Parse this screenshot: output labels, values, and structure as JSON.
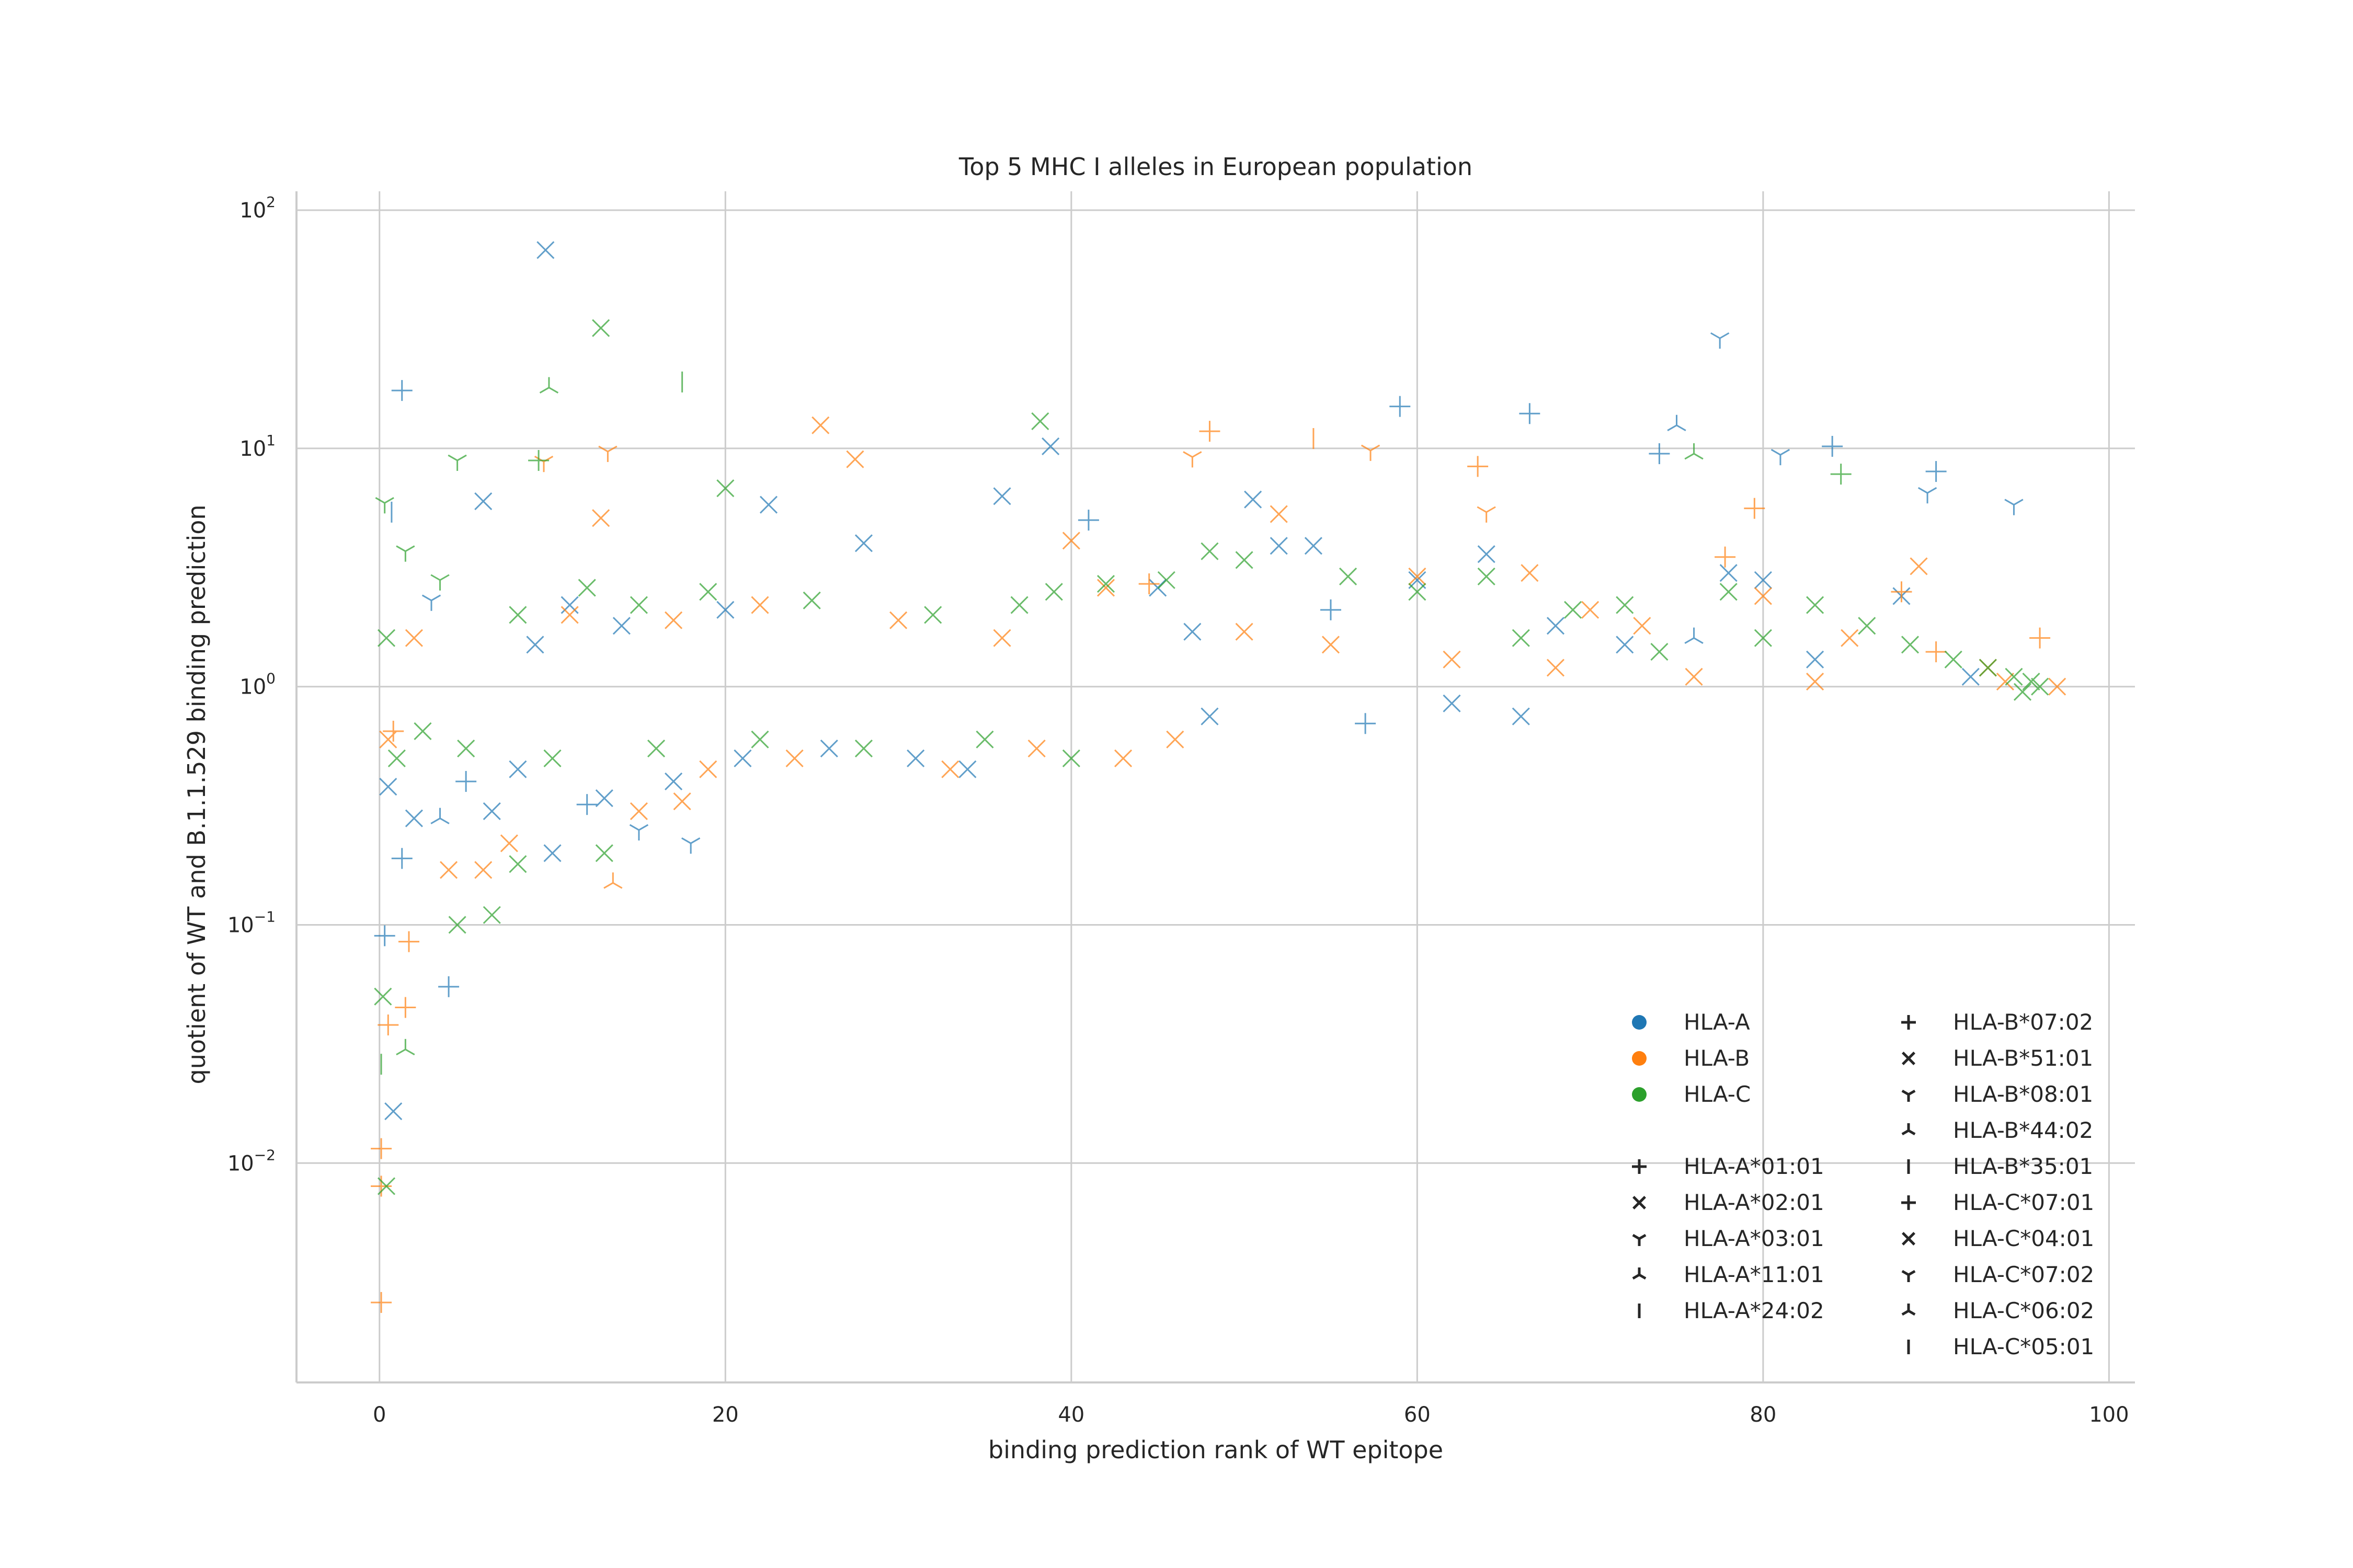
{
  "chart_data": {
    "type": "scatter",
    "title": "Top 5 MHC I alleles in European population",
    "xlabel": "binding prediction rank of WT epitope",
    "ylabel": "quotient of WT and B.1.1.529 binding prediction",
    "xlim": [
      -4.8,
      101.5
    ],
    "ylim": [
      0.0012,
      120
    ],
    "yscale": "log",
    "grid": true,
    "x_ticks": [
      "0",
      "20",
      "40",
      "60",
      "80",
      "100"
    ],
    "x_tick_values": [
      0,
      20,
      40,
      60,
      80,
      100
    ],
    "y_ticks": [
      {
        "base": "10",
        "exp": "−2",
        "value": 0.01
      },
      {
        "base": "10",
        "exp": "−1",
        "value": 0.1
      },
      {
        "base": "10",
        "exp": "0",
        "value": 1
      },
      {
        "base": "10",
        "exp": "1",
        "value": 10
      },
      {
        "base": "10",
        "exp": "2",
        "value": 100
      }
    ],
    "hue_legend": [
      {
        "label": "HLA-A",
        "color": "#1f77b4"
      },
      {
        "label": "HLA-B",
        "color": "#ff7f0e"
      },
      {
        "label": "HLA-C",
        "color": "#2ca02c"
      }
    ],
    "style_legend": [
      {
        "label": "HLA-A*01:01",
        "marker": "plus"
      },
      {
        "label": "HLA-A*02:01",
        "marker": "x"
      },
      {
        "label": "HLA-A*03:01",
        "marker": "tri_down"
      },
      {
        "label": "HLA-A*11:01",
        "marker": "tri_up"
      },
      {
        "label": "HLA-A*24:02",
        "marker": "vline"
      },
      {
        "label": "HLA-B*07:02",
        "marker": "plus"
      },
      {
        "label": "HLA-B*51:01",
        "marker": "x"
      },
      {
        "label": "HLA-B*08:01",
        "marker": "tri_down"
      },
      {
        "label": "HLA-B*44:02",
        "marker": "tri_up"
      },
      {
        "label": "HLA-B*35:01",
        "marker": "vline"
      },
      {
        "label": "HLA-C*07:01",
        "marker": "plus"
      },
      {
        "label": "HLA-C*04:01",
        "marker": "x"
      },
      {
        "label": "HLA-C*07:02",
        "marker": "tri_down"
      },
      {
        "label": "HLA-C*06:02",
        "marker": "tri_up"
      },
      {
        "label": "HLA-C*05:01",
        "marker": "vline"
      }
    ],
    "legend_position": "lower right",
    "series": [
      {
        "group": "HLA-A",
        "color": "#1f77b4",
        "points": [
          [
            9.6,
            68,
            "x"
          ],
          [
            1.3,
            17.5,
            "plus"
          ],
          [
            77.5,
            29,
            "tri_down"
          ],
          [
            75,
            12.5,
            "tri_up"
          ],
          [
            59,
            15,
            "plus"
          ],
          [
            66.5,
            14,
            "plus"
          ],
          [
            38.8,
            10.2,
            "x"
          ],
          [
            84,
            10.2,
            "plus"
          ],
          [
            74,
            9.5,
            "plus"
          ],
          [
            81,
            9.4,
            "tri_down"
          ],
          [
            90,
            8,
            "plus"
          ],
          [
            89.5,
            6.5,
            "tri_down"
          ],
          [
            94.5,
            5.8,
            "tri_down"
          ],
          [
            6,
            6,
            "x"
          ],
          [
            22.5,
            5.8,
            "x"
          ],
          [
            36,
            6.3,
            "x"
          ],
          [
            50.5,
            6.1,
            "x"
          ],
          [
            54,
            3.9,
            "x"
          ],
          [
            52,
            3.9,
            "x"
          ],
          [
            41,
            5,
            "plus"
          ],
          [
            28,
            4,
            "x"
          ],
          [
            11,
            2.2,
            "x"
          ],
          [
            3,
            2.3,
            "tri_down"
          ],
          [
            0.7,
            5.4,
            "vline"
          ],
          [
            0.3,
            0.09,
            "plus"
          ],
          [
            0.8,
            0.0165,
            "x"
          ],
          [
            4,
            0.055,
            "plus"
          ],
          [
            1.3,
            0.19,
            "plus"
          ],
          [
            0.5,
            0.38,
            "x"
          ],
          [
            3.5,
            0.28,
            "tri_up"
          ],
          [
            2,
            0.28,
            "x"
          ],
          [
            10,
            0.2,
            "x"
          ],
          [
            12,
            0.32,
            "plus"
          ],
          [
            13,
            0.34,
            "x"
          ],
          [
            15,
            0.25,
            "tri_down"
          ],
          [
            17,
            0.4,
            "x"
          ],
          [
            18,
            0.22,
            "tri_down"
          ],
          [
            8,
            0.45,
            "x"
          ],
          [
            6.5,
            0.3,
            "x"
          ],
          [
            21,
            0.5,
            "x"
          ],
          [
            26,
            0.55,
            "x"
          ],
          [
            31,
            0.5,
            "x"
          ],
          [
            34,
            0.45,
            "x"
          ],
          [
            5,
            0.4,
            "plus"
          ],
          [
            64,
            3.6,
            "x"
          ],
          [
            68,
            1.8,
            "x"
          ],
          [
            72,
            1.5,
            "x"
          ],
          [
            47,
            1.7,
            "x"
          ],
          [
            55,
            2.1,
            "plus"
          ],
          [
            60,
            2.8,
            "x"
          ],
          [
            45,
            2.6,
            "x"
          ],
          [
            20,
            2.1,
            "x"
          ],
          [
            14,
            1.8,
            "x"
          ],
          [
            9,
            1.5,
            "x"
          ],
          [
            76,
            1.6,
            "tri_up"
          ],
          [
            83,
            1.3,
            "x"
          ],
          [
            92,
            1.1,
            "x"
          ],
          [
            78,
            3,
            "x"
          ],
          [
            80,
            2.8,
            "x"
          ],
          [
            88,
            2.4,
            "x"
          ],
          [
            66,
            0.75,
            "x"
          ],
          [
            57,
            0.7,
            "plus"
          ],
          [
            62,
            0.85,
            "x"
          ],
          [
            48,
            0.75,
            "x"
          ]
        ]
      },
      {
        "group": "HLA-B",
        "color": "#ff7f0e",
        "points": [
          [
            0.1,
            0.0026,
            "plus"
          ],
          [
            0.1,
            0.0115,
            "plus"
          ],
          [
            0.1,
            0.008,
            "plus"
          ],
          [
            0.5,
            0.038,
            "plus"
          ],
          [
            1.5,
            0.045,
            "plus"
          ],
          [
            1.7,
            0.085,
            "plus"
          ],
          [
            25.5,
            12.5,
            "x"
          ],
          [
            27.5,
            9,
            "x"
          ],
          [
            13.2,
            9.7,
            "tri_down"
          ],
          [
            9.5,
            8.8,
            "tri_down"
          ],
          [
            12.8,
            5.1,
            "x"
          ],
          [
            48,
            11.8,
            "plus"
          ],
          [
            52,
            5.3,
            "x"
          ],
          [
            47,
            9.2,
            "tri_down"
          ],
          [
            54,
            11,
            "vline"
          ],
          [
            57.3,
            9.8,
            "tri_down"
          ],
          [
            63.5,
            8.4,
            "plus"
          ],
          [
            64,
            5.4,
            "tri_down"
          ],
          [
            79.5,
            5.6,
            "plus"
          ],
          [
            77.8,
            3.5,
            "plus"
          ],
          [
            88,
            2.5,
            "plus"
          ],
          [
            89,
            3.2,
            "x"
          ],
          [
            90,
            1.4,
            "plus"
          ],
          [
            96,
            1.6,
            "plus"
          ],
          [
            97,
            1,
            "x"
          ],
          [
            4,
            0.17,
            "x"
          ],
          [
            6,
            0.17,
            "x"
          ],
          [
            7.5,
            0.22,
            "x"
          ],
          [
            13.5,
            0.15,
            "tri_up"
          ],
          [
            17.5,
            0.33,
            "x"
          ],
          [
            15,
            0.3,
            "x"
          ],
          [
            19,
            0.45,
            "x"
          ],
          [
            24,
            0.5,
            "x"
          ],
          [
            33,
            0.45,
            "x"
          ],
          [
            38,
            0.55,
            "x"
          ],
          [
            43,
            0.5,
            "x"
          ],
          [
            46,
            0.6,
            "x"
          ],
          [
            40,
            4.1,
            "x"
          ],
          [
            42,
            2.6,
            "x"
          ],
          [
            44.5,
            2.7,
            "plus"
          ],
          [
            60,
            2.9,
            "x"
          ],
          [
            66.5,
            3,
            "x"
          ],
          [
            70,
            2.1,
            "x"
          ],
          [
            73,
            1.8,
            "x"
          ],
          [
            80,
            2.4,
            "x"
          ],
          [
            85,
            1.6,
            "x"
          ],
          [
            93,
            1.2,
            "x"
          ],
          [
            94,
            1.05,
            "x"
          ],
          [
            2,
            1.6,
            "x"
          ],
          [
            0.5,
            0.6,
            "x"
          ],
          [
            0.8,
            0.65,
            "plus"
          ],
          [
            11,
            2,
            "x"
          ],
          [
            17,
            1.9,
            "x"
          ],
          [
            22,
            2.2,
            "x"
          ],
          [
            30,
            1.9,
            "x"
          ],
          [
            36,
            1.6,
            "x"
          ],
          [
            50,
            1.7,
            "x"
          ],
          [
            55,
            1.5,
            "x"
          ],
          [
            62,
            1.3,
            "x"
          ],
          [
            68,
            1.2,
            "x"
          ],
          [
            76,
            1.1,
            "x"
          ],
          [
            83,
            1.05,
            "x"
          ]
        ]
      },
      {
        "group": "HLA-C",
        "color": "#2ca02c",
        "points": [
          [
            12.8,
            32,
            "x"
          ],
          [
            9.8,
            18,
            "tri_up"
          ],
          [
            17.5,
            19,
            "vline"
          ],
          [
            9.2,
            8.9,
            "plus"
          ],
          [
            4.5,
            8.9,
            "tri_down"
          ],
          [
            38.2,
            13,
            "x"
          ],
          [
            20,
            6.8,
            "x"
          ],
          [
            0.3,
            5.9,
            "tri_down"
          ],
          [
            0.2,
            0.05,
            "x"
          ],
          [
            0.1,
            0.026,
            "vline"
          ],
          [
            1.5,
            0.03,
            "tri_up"
          ],
          [
            0.4,
            0.008,
            "x"
          ],
          [
            4.5,
            0.1,
            "x"
          ],
          [
            6.5,
            0.11,
            "x"
          ],
          [
            8,
            0.18,
            "x"
          ],
          [
            13,
            0.2,
            "x"
          ],
          [
            1,
            0.5,
            "x"
          ],
          [
            2.5,
            0.65,
            "x"
          ],
          [
            5,
            0.55,
            "x"
          ],
          [
            10,
            0.5,
            "x"
          ],
          [
            16,
            0.55,
            "x"
          ],
          [
            22,
            0.6,
            "x"
          ],
          [
            28,
            0.55,
            "x"
          ],
          [
            35,
            0.6,
            "x"
          ],
          [
            40,
            0.5,
            "x"
          ],
          [
            84.5,
            7.8,
            "plus"
          ],
          [
            76,
            9.5,
            "tri_up"
          ],
          [
            83,
            2.2,
            "x"
          ],
          [
            78,
            2.5,
            "x"
          ],
          [
            86,
            1.8,
            "x"
          ],
          [
            72,
            2.2,
            "x"
          ],
          [
            69,
            2.1,
            "x"
          ],
          [
            64,
            2.9,
            "x"
          ],
          [
            60,
            2.5,
            "x"
          ],
          [
            56,
            2.9,
            "x"
          ],
          [
            50,
            3.4,
            "x"
          ],
          [
            48,
            3.7,
            "x"
          ],
          [
            45.5,
            2.8,
            "x"
          ],
          [
            42,
            2.7,
            "x"
          ],
          [
            39,
            2.5,
            "x"
          ],
          [
            37,
            2.2,
            "x"
          ],
          [
            32,
            2,
            "x"
          ],
          [
            25,
            2.3,
            "x"
          ],
          [
            19,
            2.5,
            "x"
          ],
          [
            15,
            2.2,
            "x"
          ],
          [
            12,
            2.6,
            "x"
          ],
          [
            8,
            2,
            "x"
          ],
          [
            3.5,
            2.8,
            "tri_down"
          ],
          [
            1.5,
            3.7,
            "tri_down"
          ],
          [
            0.4,
            1.6,
            "x"
          ],
          [
            88.5,
            1.5,
            "x"
          ],
          [
            91,
            1.3,
            "x"
          ],
          [
            93,
            1.2,
            "x"
          ],
          [
            94.5,
            1.1,
            "x"
          ],
          [
            95.5,
            1.05,
            "x"
          ],
          [
            96,
            1,
            "x"
          ],
          [
            95,
            0.95,
            "x"
          ],
          [
            80,
            1.6,
            "x"
          ],
          [
            74,
            1.4,
            "x"
          ],
          [
            66,
            1.6,
            "x"
          ]
        ]
      }
    ]
  }
}
